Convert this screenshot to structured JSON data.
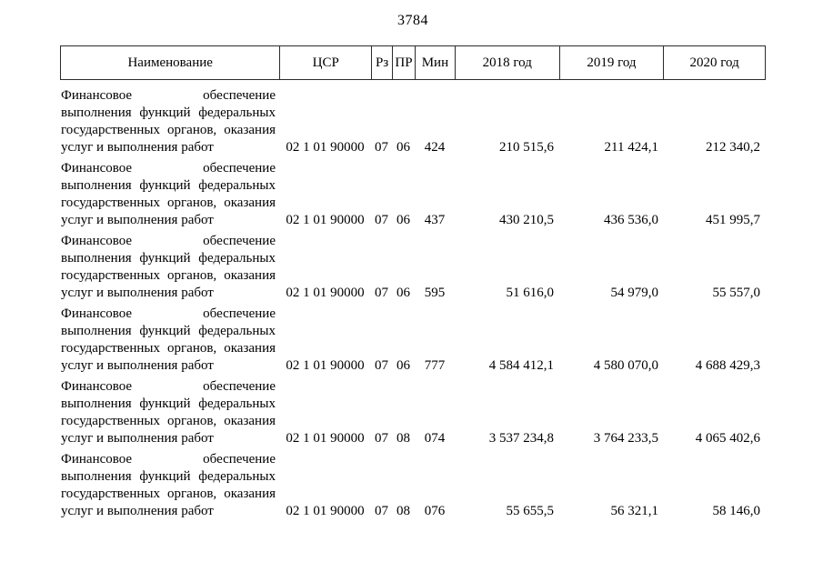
{
  "page": {
    "number": "3784"
  },
  "colors": {
    "text": "#000000",
    "border": "#2b2b2b",
    "background": "#ffffff"
  },
  "table": {
    "headers": {
      "name": "Наименование",
      "csr": "ЦСР",
      "rz": "Рз",
      "pr": "ПР",
      "min": "Мин",
      "y2018": "2018 год",
      "y2019": "2019 год",
      "y2020": "2020 год"
    },
    "rows": [
      {
        "name_lines": [
          "Финансовое обеспечение",
          "выполнения функций федеральных",
          "государственных органов, оказания",
          "услуг и выполнения работ"
        ],
        "csr": "02 1 01 90000",
        "rz": "07",
        "pr": "06",
        "min": "424",
        "y2018": "210 515,6",
        "y2019": "211 424,1",
        "y2020": "212 340,2"
      },
      {
        "name_lines": [
          "Финансовое обеспечение",
          "выполнения функций федеральных",
          "государственных органов, оказания",
          "услуг и выполнения работ"
        ],
        "csr": "02 1 01 90000",
        "rz": "07",
        "pr": "06",
        "min": "437",
        "y2018": "430 210,5",
        "y2019": "436 536,0",
        "y2020": "451 995,7"
      },
      {
        "name_lines": [
          "Финансовое обеспечение",
          "выполнения функций федеральных",
          "государственных органов, оказания",
          "услуг и выполнения работ"
        ],
        "csr": "02 1 01 90000",
        "rz": "07",
        "pr": "06",
        "min": "595",
        "y2018": "51 616,0",
        "y2019": "54 979,0",
        "y2020": "55 557,0"
      },
      {
        "name_lines": [
          "Финансовое обеспечение",
          "выполнения функций федеральных",
          "государственных органов, оказания",
          "услуг и выполнения работ"
        ],
        "csr": "02 1 01 90000",
        "rz": "07",
        "pr": "06",
        "min": "777",
        "y2018": "4 584 412,1",
        "y2019": "4 580 070,0",
        "y2020": "4 688 429,3"
      },
      {
        "name_lines": [
          "Финансовое обеспечение",
          "выполнения функций федеральных",
          "государственных органов, оказания",
          "услуг и выполнения работ"
        ],
        "csr": "02 1 01 90000",
        "rz": "07",
        "pr": "08",
        "min": "074",
        "y2018": "3 537 234,8",
        "y2019": "3 764 233,5",
        "y2020": "4 065 402,6"
      },
      {
        "name_lines": [
          "Финансовое обеспечение",
          "выполнения функций федеральных",
          "государственных органов, оказания",
          "услуг и выполнения работ"
        ],
        "csr": "02 1 01 90000",
        "rz": "07",
        "pr": "08",
        "min": "076",
        "y2018": "55 655,5",
        "y2019": "56 321,1",
        "y2020": "58 146,0"
      }
    ]
  }
}
